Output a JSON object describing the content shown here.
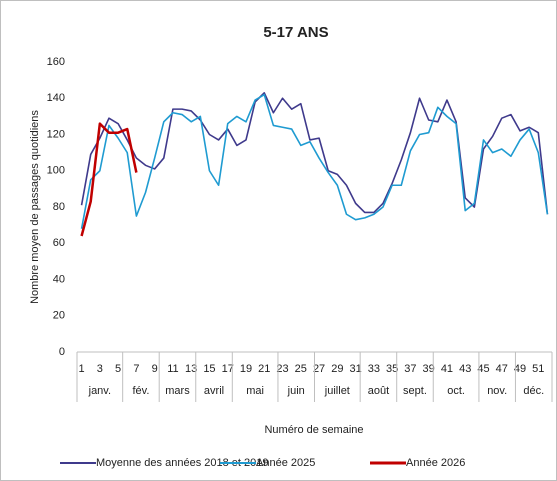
{
  "chart_data": {
    "type": "line",
    "title": "5-17 ANS",
    "y_label": "Nombre moyen de passages quotidiens",
    "x_label": "Numéro de semaine",
    "categories": [
      "1",
      null,
      "3",
      null,
      "5",
      null,
      "7",
      null,
      "9",
      null,
      "11",
      null,
      "13",
      null,
      "15",
      null,
      "17",
      null,
      "19",
      null,
      "21",
      null,
      "23",
      null,
      "25",
      null,
      "27",
      null,
      "29",
      null,
      "31",
      null,
      "33",
      null,
      "35",
      null,
      "37",
      null,
      "39",
      null,
      "41",
      null,
      "43",
      null,
      "45",
      null,
      "47",
      null,
      "49",
      null,
      "51",
      null
    ],
    "month_groups": [
      {
        "label": "janv.",
        "first_week": 1,
        "last_week": 5
      },
      {
        "label": "fév.",
        "first_week": 6,
        "last_week": 9
      },
      {
        "label": "mars",
        "first_week": 10,
        "last_week": 13
      },
      {
        "label": "avril",
        "first_week": 14,
        "last_week": 17
      },
      {
        "label": "mai",
        "first_week": 18,
        "last_week": 22
      },
      {
        "label": "juin",
        "first_week": 23,
        "last_week": 26
      },
      {
        "label": "juillet",
        "first_week": 27,
        "last_week": 31
      },
      {
        "label": "août",
        "first_week": 32,
        "last_week": 35
      },
      {
        "label": "sept.",
        "first_week": 36,
        "last_week": 39
      },
      {
        "label": "oct.",
        "first_week": 40,
        "last_week": 44
      },
      {
        "label": "nov.",
        "first_week": 45,
        "last_week": 48
      },
      {
        "label": "déc.",
        "first_week": 49,
        "last_week": 52
      }
    ],
    "series": [
      {
        "name": "Moyenne des années 2018 et 2019",
        "color": "#3f3a8c",
        "values": [
          81,
          109,
          118,
          129,
          126,
          117,
          107,
          103,
          101,
          107,
          134,
          134,
          133,
          128,
          120,
          117,
          123,
          114,
          117,
          138,
          143,
          132,
          140,
          134,
          137,
          117,
          118,
          100,
          98,
          92,
          82,
          77,
          77,
          82,
          93,
          106,
          121,
          140,
          128,
          127,
          139,
          127,
          85,
          80,
          112,
          119,
          129,
          131,
          122,
          124,
          121,
          76
        ]
      },
      {
        "name": "Année 2025",
        "color": "#1f9bd1",
        "values": [
          68,
          95,
          100,
          125,
          118,
          110,
          75,
          88,
          107,
          127,
          132,
          131,
          127,
          130,
          100,
          92,
          126,
          130,
          127,
          139,
          142,
          125,
          124,
          123,
          114,
          116,
          107,
          99,
          92,
          76,
          73,
          74,
          76,
          80,
          92,
          92,
          111,
          120,
          121,
          135,
          130,
          126,
          78,
          82,
          117,
          110,
          112,
          108,
          117,
          123,
          110,
          76
        ]
      },
      {
        "name": "Année 2026",
        "color": "#c00000",
        "values": [
          64,
          83,
          126,
          121,
          121,
          123,
          99,
          null,
          null,
          null,
          null,
          null,
          null,
          null,
          null,
          null,
          null,
          null,
          null,
          null,
          null,
          null,
          null,
          null,
          null,
          null,
          null,
          null,
          null,
          null,
          null,
          null,
          null,
          null,
          null,
          null,
          null,
          null,
          null,
          null,
          null,
          null,
          null,
          null,
          null,
          null,
          null,
          null,
          null,
          null,
          null,
          null
        ]
      }
    ],
    "ylim": [
      0,
      160
    ],
    "yticks": [
      0,
      20,
      40,
      60,
      80,
      100,
      120,
      140,
      160
    ],
    "grid": false
  }
}
